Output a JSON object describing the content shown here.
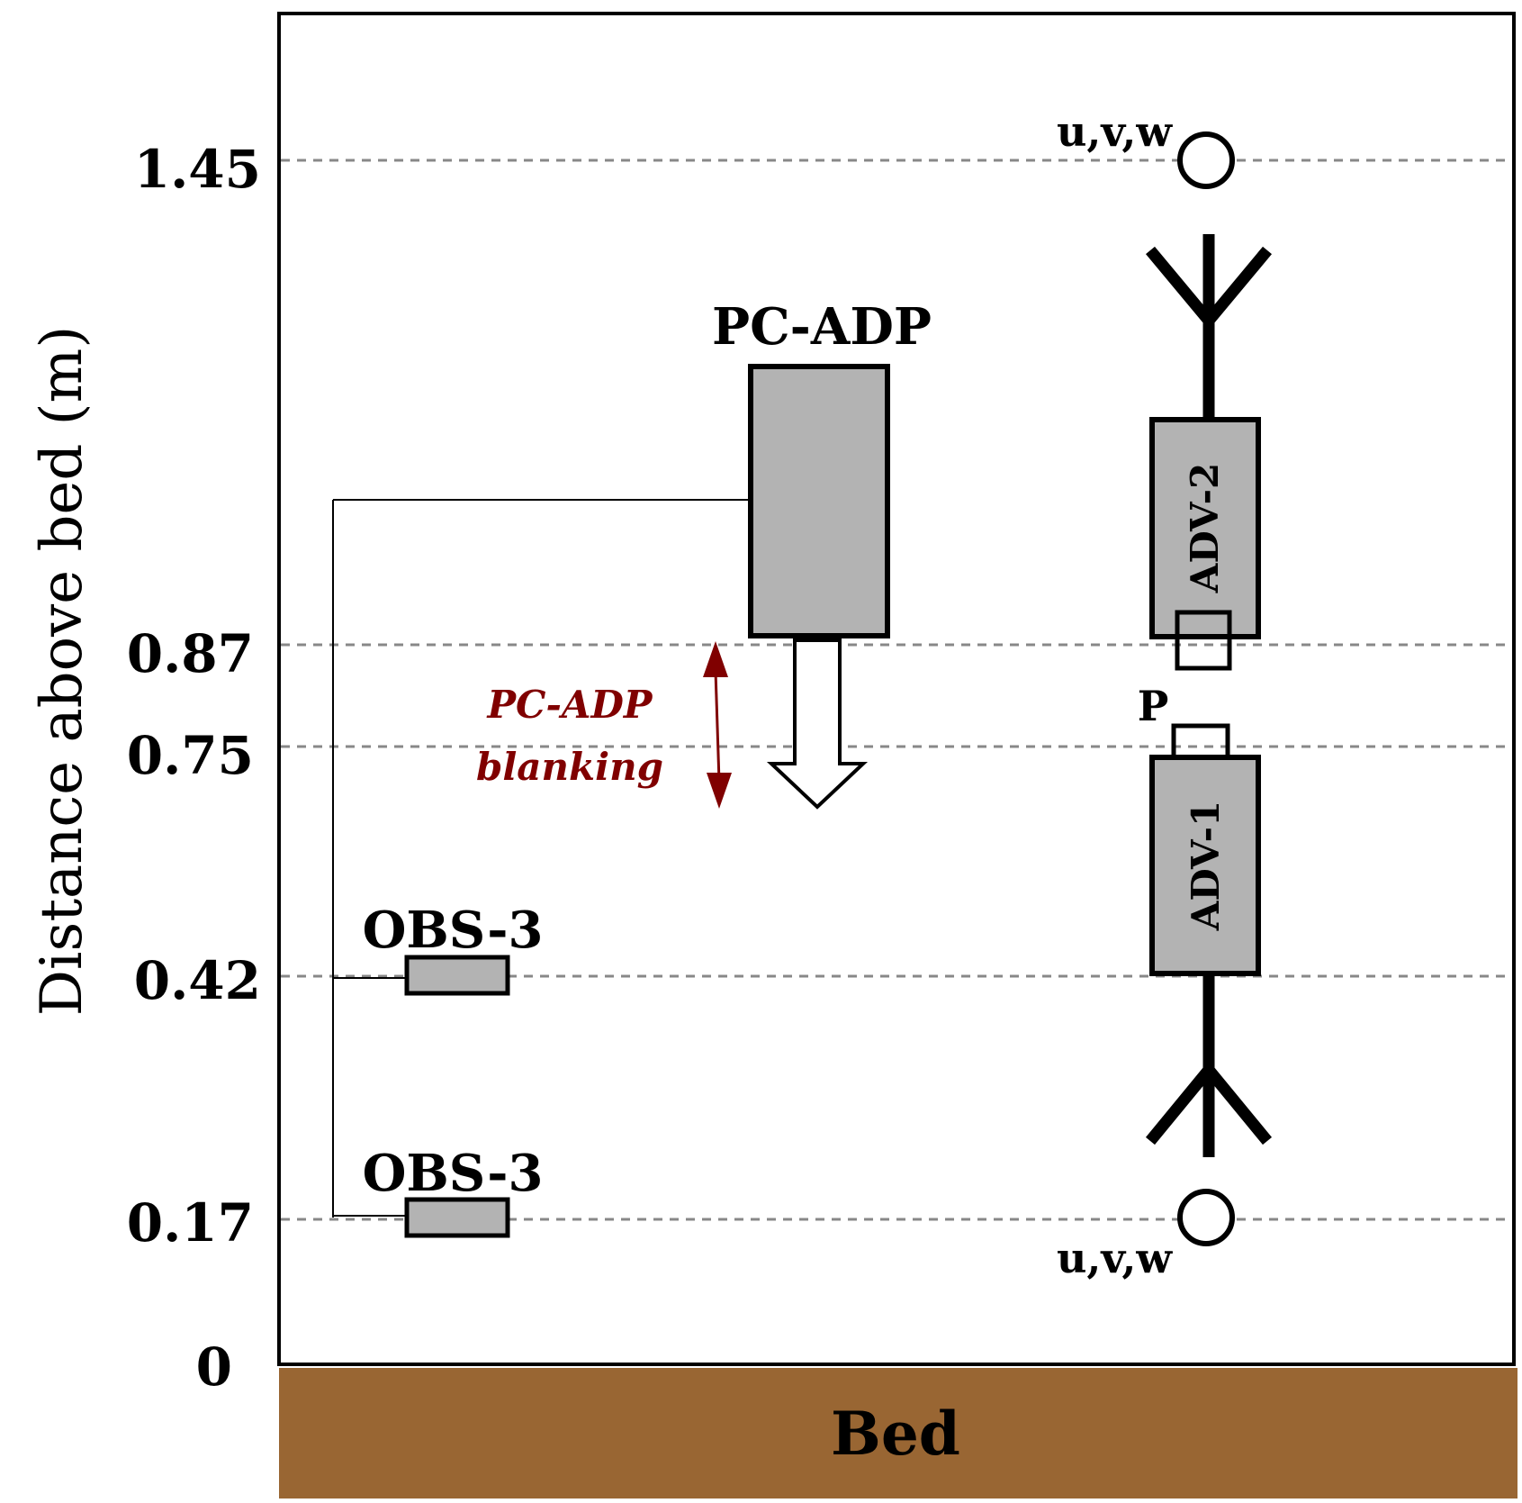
{
  "axis": {
    "y_label": "Distance above bed (m)",
    "ticks": [
      "1.45",
      "0.87",
      "0.75",
      "0.42",
      "0.17",
      "0"
    ]
  },
  "instruments": {
    "pc_adp": "PC-ADP",
    "blanking_line1": "PC-ADP",
    "blanking_line2": "blanking",
    "obs_upper": "OBS-3",
    "obs_lower": "OBS-3",
    "adv_upper": "ADV-2",
    "adv_lower": "ADV-1",
    "pressure": "P",
    "velocity_upper": "u,v,w",
    "velocity_lower": "u,v,w"
  },
  "bed": {
    "label": "Bed"
  },
  "colors": {
    "instrument_fill": "#b3b3b3",
    "bed_fill": "#996633",
    "blanking_color": "#800000",
    "gridline": "#888888"
  }
}
